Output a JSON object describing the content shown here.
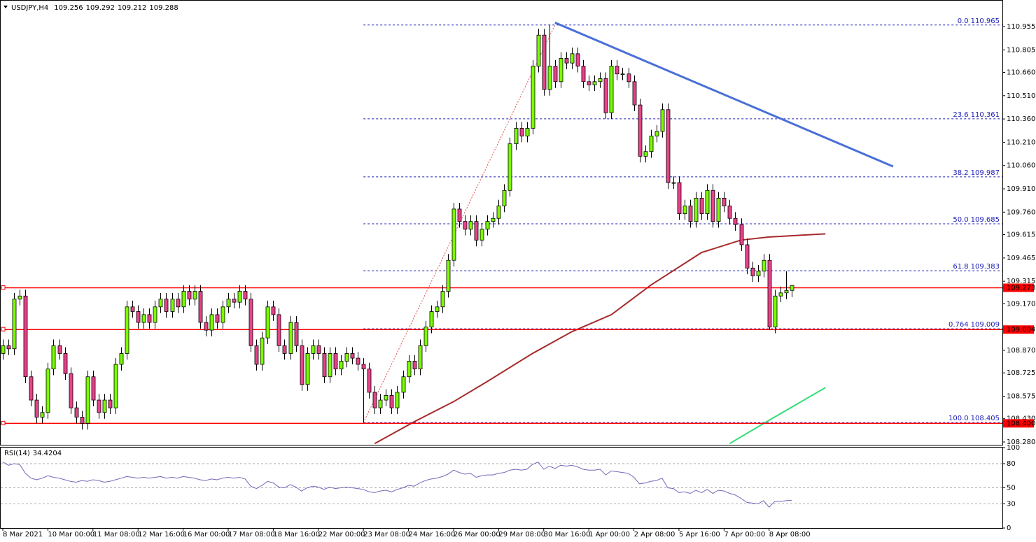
{
  "chart_data": {
    "type": "candlestick",
    "symbol": "USDJPY,H4",
    "ylim": [
      108.262,
      111.126
    ],
    "yticks": [
      110.955,
      110.805,
      {
        "value": 110.66,
        "label": "110.660"
      },
      {
        "value": 110.51,
        "label": "110.510"
      },
      {
        "value": 110.36,
        "label": "110.360"
      },
      {
        "value": 110.21,
        "label": "110.210"
      },
      {
        "value": 110.06,
        "label": "110.060"
      },
      {
        "value": 109.91,
        "label": "109.910"
      },
      {
        "value": 109.76,
        "label": "109.760"
      },
      109.615,
      109.465,
      109.315,
      {
        "value": 109.17,
        "label": "109.170"
      },
      {
        "value": 108.87,
        "label": "108.870"
      },
      108.725,
      108.575,
      {
        "value": 108.43,
        "label": "108.430"
      },
      {
        "value": 108.28,
        "label": "108.280"
      }
    ],
    "xlim": [
      -0.5,
      177.4
    ],
    "xticks": [
      {
        "value": 0,
        "label": "8 Mar 2021"
      },
      {
        "value": 8,
        "label": "10 Mar 00:00"
      },
      {
        "value": 16,
        "label": "11 Mar 08:00"
      },
      {
        "value": 24,
        "label": "12 Mar 16:00"
      },
      {
        "value": 32,
        "label": "16 Mar 00:00"
      },
      {
        "value": 40,
        "label": "17 Mar 08:00"
      },
      {
        "value": 48,
        "label": "18 Mar 16:00"
      },
      {
        "value": 56,
        "label": "22 Mar 00:00"
      },
      {
        "value": 64,
        "label": "23 Mar 08:00"
      },
      {
        "value": 72,
        "label": "24 Mar 16:00"
      },
      {
        "value": 80,
        "label": "26 Mar 00:00"
      },
      {
        "value": 88,
        "label": "29 Mar 08:00"
      },
      {
        "value": 96,
        "label": "30 Mar 16:00"
      },
      {
        "value": 104,
        "label": "1 Apr 00:00"
      },
      {
        "value": 112,
        "label": "2 Apr 08:00"
      },
      {
        "value": 120,
        "label": "5 Apr 16:00"
      },
      {
        "value": 128,
        "label": "7 Apr 00:00"
      },
      {
        "value": 136,
        "label": "8 Apr 08:00"
      }
    ],
    "colors": {
      "up": "#7cfc00",
      "down": "#e8438a",
      "wick": "#000000"
    },
    "candles": [
      [
        108.85,
        108.94,
        108.81,
        108.9
      ],
      [
        108.9,
        108.94,
        108.84,
        108.88
      ],
      [
        108.88,
        109.24,
        108.84,
        109.2
      ],
      [
        109.2,
        109.26,
        109.16,
        109.22
      ],
      [
        109.22,
        109.26,
        108.66,
        108.7
      ],
      [
        108.7,
        108.74,
        108.51,
        108.55
      ],
      [
        108.55,
        108.59,
        108.4,
        108.44
      ],
      [
        108.44,
        108.51,
        108.4,
        108.47
      ],
      [
        108.47,
        108.79,
        108.43,
        108.75
      ],
      [
        108.75,
        108.94,
        108.71,
        108.9
      ],
      [
        108.9,
        108.94,
        108.81,
        108.85
      ],
      [
        108.85,
        108.89,
        108.68,
        108.72
      ],
      [
        108.72,
        108.76,
        108.46,
        108.5
      ],
      [
        108.5,
        108.54,
        108.4,
        108.44
      ],
      [
        108.44,
        108.48,
        108.36,
        108.4
      ],
      [
        108.4,
        108.74,
        108.36,
        108.7
      ],
      [
        108.7,
        108.74,
        108.51,
        108.55
      ],
      [
        108.55,
        108.59,
        108.43,
        108.47
      ],
      [
        108.47,
        108.59,
        108.43,
        108.55
      ],
      [
        108.55,
        108.59,
        108.46,
        108.5
      ],
      [
        108.5,
        108.82,
        108.46,
        108.78
      ],
      [
        108.78,
        108.89,
        108.74,
        108.85
      ],
      [
        108.85,
        109.19,
        108.81,
        109.15
      ],
      [
        109.15,
        109.19,
        109.08,
        109.12
      ],
      [
        109.12,
        109.16,
        109.01,
        109.05
      ],
      [
        109.05,
        109.14,
        109.01,
        109.1
      ],
      [
        109.1,
        109.14,
        109.01,
        109.05
      ],
      [
        109.05,
        109.19,
        109.01,
        109.15
      ],
      [
        109.15,
        109.24,
        109.11,
        109.2
      ],
      [
        109.2,
        109.24,
        109.08,
        109.12
      ],
      [
        109.12,
        109.24,
        109.08,
        109.2
      ],
      [
        109.2,
        109.24,
        109.11,
        109.15
      ],
      [
        109.15,
        109.29,
        109.11,
        109.25
      ],
      [
        109.25,
        109.29,
        109.16,
        109.2
      ],
      [
        109.2,
        109.29,
        109.16,
        109.25
      ],
      [
        109.25,
        109.29,
        109.01,
        109.05
      ],
      [
        109.05,
        109.09,
        108.96,
        109.0
      ],
      [
        109.0,
        109.14,
        108.96,
        109.1
      ],
      [
        109.1,
        109.14,
        109.01,
        109.05
      ],
      [
        109.05,
        109.19,
        109.01,
        109.15
      ],
      [
        109.15,
        109.24,
        109.11,
        109.2
      ],
      [
        109.2,
        109.24,
        109.14,
        109.18
      ],
      [
        109.18,
        109.29,
        109.14,
        109.25
      ],
      [
        109.25,
        109.29,
        109.16,
        109.2
      ],
      [
        109.2,
        109.24,
        108.86,
        108.9
      ],
      [
        108.9,
        108.94,
        108.74,
        108.78
      ],
      [
        108.78,
        108.99,
        108.74,
        108.95
      ],
      [
        108.95,
        109.19,
        108.91,
        109.15
      ],
      [
        109.15,
        109.19,
        109.06,
        109.1
      ],
      [
        109.1,
        109.14,
        108.86,
        108.9
      ],
      [
        108.9,
        108.94,
        108.81,
        108.85
      ],
      [
        108.85,
        109.09,
        108.81,
        109.05
      ],
      [
        109.05,
        109.09,
        108.86,
        108.9
      ],
      [
        108.9,
        108.94,
        108.61,
        108.65
      ],
      [
        108.65,
        108.89,
        108.61,
        108.85
      ],
      [
        108.85,
        108.94,
        108.81,
        108.9
      ],
      [
        108.9,
        108.94,
        108.81,
        108.85
      ],
      [
        108.85,
        108.89,
        108.66,
        108.7
      ],
      [
        108.7,
        108.89,
        108.66,
        108.85
      ],
      [
        108.85,
        108.89,
        108.71,
        108.75
      ],
      [
        108.75,
        108.84,
        108.71,
        108.8
      ],
      [
        108.8,
        108.89,
        108.76,
        108.85
      ],
      [
        108.85,
        108.89,
        108.78,
        108.82
      ],
      [
        108.82,
        108.86,
        108.74,
        108.78
      ],
      [
        108.78,
        108.82,
        108.405,
        108.75
      ],
      [
        108.75,
        108.79,
        108.56,
        108.6
      ],
      [
        108.6,
        108.64,
        108.46,
        108.5
      ],
      [
        108.5,
        108.59,
        108.46,
        108.55
      ],
      [
        108.55,
        108.62,
        108.51,
        108.58
      ],
      [
        108.58,
        108.62,
        108.46,
        108.5
      ],
      [
        108.5,
        108.64,
        108.46,
        108.6
      ],
      [
        108.6,
        108.74,
        108.56,
        108.7
      ],
      [
        108.7,
        108.84,
        108.66,
        108.8
      ],
      [
        108.8,
        108.84,
        108.71,
        108.75
      ],
      [
        108.75,
        108.94,
        108.71,
        108.9
      ],
      [
        108.9,
        109.06,
        108.86,
        109.02
      ],
      [
        109.02,
        109.16,
        108.98,
        109.12
      ],
      [
        109.12,
        109.19,
        109.08,
        109.15
      ],
      [
        109.15,
        109.29,
        109.11,
        109.25
      ],
      [
        109.25,
        109.49,
        109.21,
        109.45
      ],
      [
        109.45,
        109.82,
        109.41,
        109.78
      ],
      [
        109.78,
        109.82,
        109.66,
        109.7
      ],
      [
        109.7,
        109.74,
        109.61,
        109.65
      ],
      [
        109.65,
        109.74,
        109.61,
        109.7
      ],
      [
        109.7,
        109.74,
        109.54,
        109.58
      ],
      [
        109.58,
        109.69,
        109.54,
        109.65
      ],
      [
        109.65,
        109.74,
        109.61,
        109.7
      ],
      [
        109.7,
        109.76,
        109.66,
        109.72
      ],
      [
        109.72,
        109.84,
        109.68,
        109.8
      ],
      [
        109.8,
        109.94,
        109.76,
        109.9
      ],
      [
        109.9,
        110.24,
        109.86,
        110.2
      ],
      [
        110.2,
        110.34,
        110.16,
        110.3
      ],
      [
        110.3,
        110.34,
        110.21,
        110.25
      ],
      [
        110.25,
        110.34,
        110.21,
        110.3
      ],
      [
        110.3,
        110.74,
        110.26,
        110.7
      ],
      [
        110.7,
        110.94,
        110.66,
        110.9
      ],
      [
        110.9,
        110.94,
        110.51,
        110.55
      ],
      [
        110.55,
        110.965,
        110.51,
        110.7
      ],
      [
        110.7,
        110.74,
        110.56,
        110.6
      ],
      [
        110.6,
        110.79,
        110.56,
        110.75
      ],
      [
        110.75,
        110.79,
        110.68,
        110.72
      ],
      [
        110.72,
        110.82,
        110.68,
        110.78
      ],
      [
        110.78,
        110.82,
        110.66,
        110.7
      ],
      [
        110.7,
        110.74,
        110.56,
        110.6
      ],
      [
        110.6,
        110.64,
        110.54,
        110.58
      ],
      [
        110.58,
        110.64,
        110.54,
        110.6
      ],
      [
        110.6,
        110.66,
        110.56,
        110.62
      ],
      [
        110.62,
        110.66,
        110.36,
        110.4
      ],
      [
        110.4,
        110.74,
        110.36,
        110.7
      ],
      [
        110.7,
        110.74,
        110.61,
        110.65
      ],
      [
        110.65,
        110.69,
        110.61,
        110.65
      ],
      [
        110.65,
        110.69,
        110.56,
        110.6
      ],
      [
        110.6,
        110.64,
        110.41,
        110.45
      ],
      [
        110.45,
        110.49,
        110.08,
        110.12
      ],
      [
        110.12,
        110.19,
        110.08,
        110.15
      ],
      [
        110.15,
        110.29,
        110.11,
        110.25
      ],
      [
        110.25,
        110.32,
        110.21,
        110.28
      ],
      [
        110.28,
        110.46,
        110.24,
        110.42
      ],
      [
        110.42,
        110.46,
        109.91,
        109.95
      ],
      [
        109.95,
        109.99,
        109.91,
        109.95
      ],
      [
        109.95,
        109.99,
        109.71,
        109.75
      ],
      [
        109.75,
        109.84,
        109.71,
        109.8
      ],
      [
        109.8,
        109.84,
        109.66,
        109.7
      ],
      [
        109.7,
        109.89,
        109.66,
        109.85
      ],
      [
        109.85,
        109.89,
        109.71,
        109.75
      ],
      [
        109.75,
        109.94,
        109.71,
        109.9
      ],
      [
        109.9,
        109.94,
        109.66,
        109.7
      ],
      [
        109.7,
        109.89,
        109.66,
        109.85
      ],
      [
        109.85,
        109.89,
        109.76,
        109.8
      ],
      [
        109.8,
        109.84,
        109.68,
        109.72
      ],
      [
        109.72,
        109.76,
        109.64,
        109.68
      ],
      [
        109.68,
        109.72,
        109.51,
        109.55
      ],
      [
        109.55,
        109.59,
        109.36,
        109.4
      ],
      [
        109.4,
        109.44,
        109.31,
        109.35
      ],
      [
        109.35,
        109.42,
        109.31,
        109.38
      ],
      [
        109.38,
        109.49,
        109.34,
        109.45
      ],
      [
        109.45,
        109.49,
        109.0,
        109.02
      ],
      [
        109.02,
        109.26,
        108.98,
        109.22
      ],
      [
        109.22,
        109.28,
        109.18,
        109.24
      ],
      [
        109.24,
        109.38,
        109.2,
        109.256
      ],
      [
        109.256,
        109.292,
        109.212,
        109.288
      ]
    ],
    "moving_averages": [
      {
        "color": "#a52a2a",
        "x": [
          66,
          73,
          80,
          86,
          94,
          101,
          108,
          115,
          124,
          131,
          136,
          146
        ],
        "values": [
          108.27,
          108.41,
          108.54,
          108.67,
          108.85,
          108.99,
          109.1,
          109.29,
          109.5,
          109.58,
          109.6,
          109.62
        ]
      },
      {
        "color": "#33dd77",
        "x": [
          129,
          136,
          146
        ],
        "values": [
          108.27,
          108.42,
          108.63
        ]
      }
    ],
    "trendline": {
      "color": "#4a6fd8",
      "x": [
        98,
        158
      ],
      "values": [
        110.98,
        110.054
      ]
    },
    "fib": {
      "color": "#1c1cb4",
      "anchor_color": "#e05050",
      "from_x": 64,
      "anchor_x": [
        64,
        98
      ],
      "anchor_values": [
        108.405,
        110.965
      ],
      "levels": [
        {
          "ratio": "0.0",
          "price": 110.965
        },
        {
          "ratio": "23.6",
          "price": 110.361
        },
        {
          "ratio": "38.2",
          "price": 109.987
        },
        {
          "ratio": "50.0",
          "price": 109.685
        },
        {
          "ratio": "61.8",
          "price": 109.383
        },
        {
          "ratio": "0.764",
          "price": 109.009
        },
        {
          "ratio": "100.0",
          "price": 108.405
        }
      ]
    },
    "hlines": {
      "color": "#ff0000",
      "lines": [
        109.273,
        109.004,
        {
          "value": 108.4,
          "label": "108.400"
        }
      ]
    },
    "rsi": {
      "label": "RSI(14)",
      "ylim": [
        0,
        100
      ],
      "yticks": [
        100,
        80,
        50,
        30,
        0
      ],
      "color": "#7a64b8",
      "values": [
        82,
        78,
        80,
        79,
        68,
        62,
        60,
        62,
        65,
        63,
        62,
        60,
        58,
        57,
        59,
        58,
        60,
        59,
        57,
        58,
        60,
        62,
        64,
        63,
        62,
        63,
        62,
        63,
        64,
        62,
        63,
        62,
        64,
        63,
        62,
        60,
        59,
        61,
        60,
        62,
        63,
        62,
        63,
        61,
        52,
        49,
        53,
        58,
        56,
        51,
        50,
        54,
        51,
        46,
        50,
        52,
        51,
        48,
        51,
        49,
        50,
        51,
        50,
        49,
        48,
        45,
        44,
        46,
        47,
        45,
        48,
        50,
        53,
        52,
        56,
        59,
        61,
        62,
        64,
        67,
        72,
        69,
        67,
        68,
        63,
        65,
        66,
        66,
        68,
        69,
        72,
        73,
        72,
        73,
        79,
        82,
        73,
        77,
        74,
        78,
        77,
        78,
        76,
        73,
        72,
        72,
        73,
        66,
        71,
        70,
        69,
        68,
        63,
        55,
        56,
        58,
        59,
        62,
        50,
        49,
        44,
        45,
        43,
        47,
        44,
        48,
        43,
        47,
        46,
        43,
        41,
        37,
        32,
        31,
        30,
        34,
        26,
        33,
        33,
        34,
        34.4204
      ]
    }
  }
}
